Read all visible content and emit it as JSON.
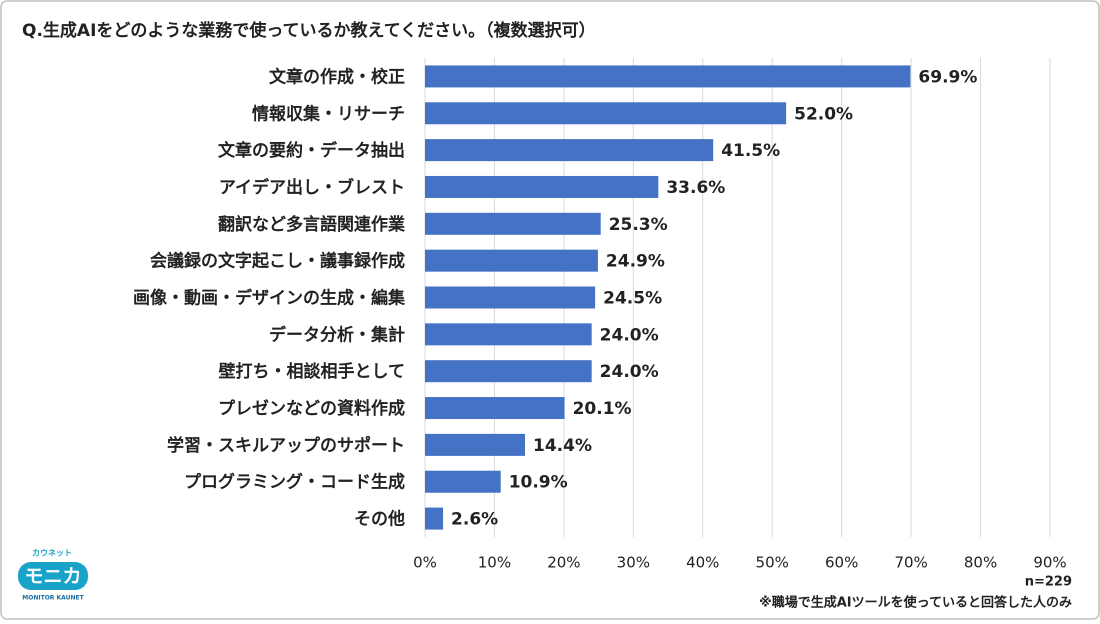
{
  "chart_data": {
    "type": "bar",
    "orientation": "horizontal",
    "title": "Q.生成AIをどのような業務で使っているか教えてください。（複数選択可）",
    "categories": [
      "文章の作成・校正",
      "情報収集・リサーチ",
      "文章の要約・データ抽出",
      "アイデア出し・ブレスト",
      "翻訳など多言語関連作業",
      "会議録の文字起こし・議事録作成",
      "画像・動画・デザインの生成・編集",
      "データ分析・集計",
      "壁打ち・相談相手として",
      "プレゼンなどの資料作成",
      "学習・スキルアップのサポート",
      "プログラミング・コード生成",
      "その他"
    ],
    "values": [
      69.9,
      52.0,
      41.5,
      33.6,
      25.3,
      24.9,
      24.5,
      24.0,
      24.0,
      20.1,
      14.4,
      10.9,
      2.6
    ],
    "value_labels": [
      "69.9%",
      "52.0%",
      "41.5%",
      "33.6%",
      "25.3%",
      "24.9%",
      "24.5%",
      "24.0%",
      "24.0%",
      "20.1%",
      "14.4%",
      "10.9%",
      "2.6%"
    ],
    "color": "#4472c4",
    "xlim": [
      0,
      90
    ],
    "xticks": [
      {
        "value": 0,
        "label": "0%"
      },
      {
        "value": 10,
        "label": "10%"
      },
      {
        "value": 20,
        "label": "20%"
      },
      {
        "value": 30,
        "label": "30%"
      },
      {
        "value": 40,
        "label": "40%"
      },
      {
        "value": 50,
        "label": "50%"
      },
      {
        "value": 60,
        "label": "60%"
      },
      {
        "value": 70,
        "label": "70%"
      },
      {
        "value": 80,
        "label": "80%"
      },
      {
        "value": 90,
        "label": "90%"
      }
    ],
    "grid": true,
    "sample_size": "n=229",
    "note": "※職場で生成AIツールを使っていると回答した人のみ"
  },
  "logo": {
    "top": "カウネット",
    "main": "モニカ",
    "bottom": "MONITOR KAUNET"
  }
}
